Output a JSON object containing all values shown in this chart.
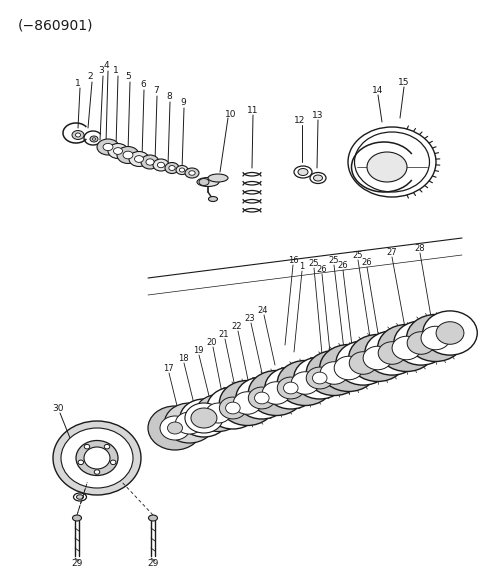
{
  "title": "(−860901)",
  "bg_color": "#ffffff",
  "line_color": "#1a1a1a",
  "title_fontsize": 10,
  "fig_width": 4.8,
  "fig_height": 5.81,
  "dpi": 100
}
